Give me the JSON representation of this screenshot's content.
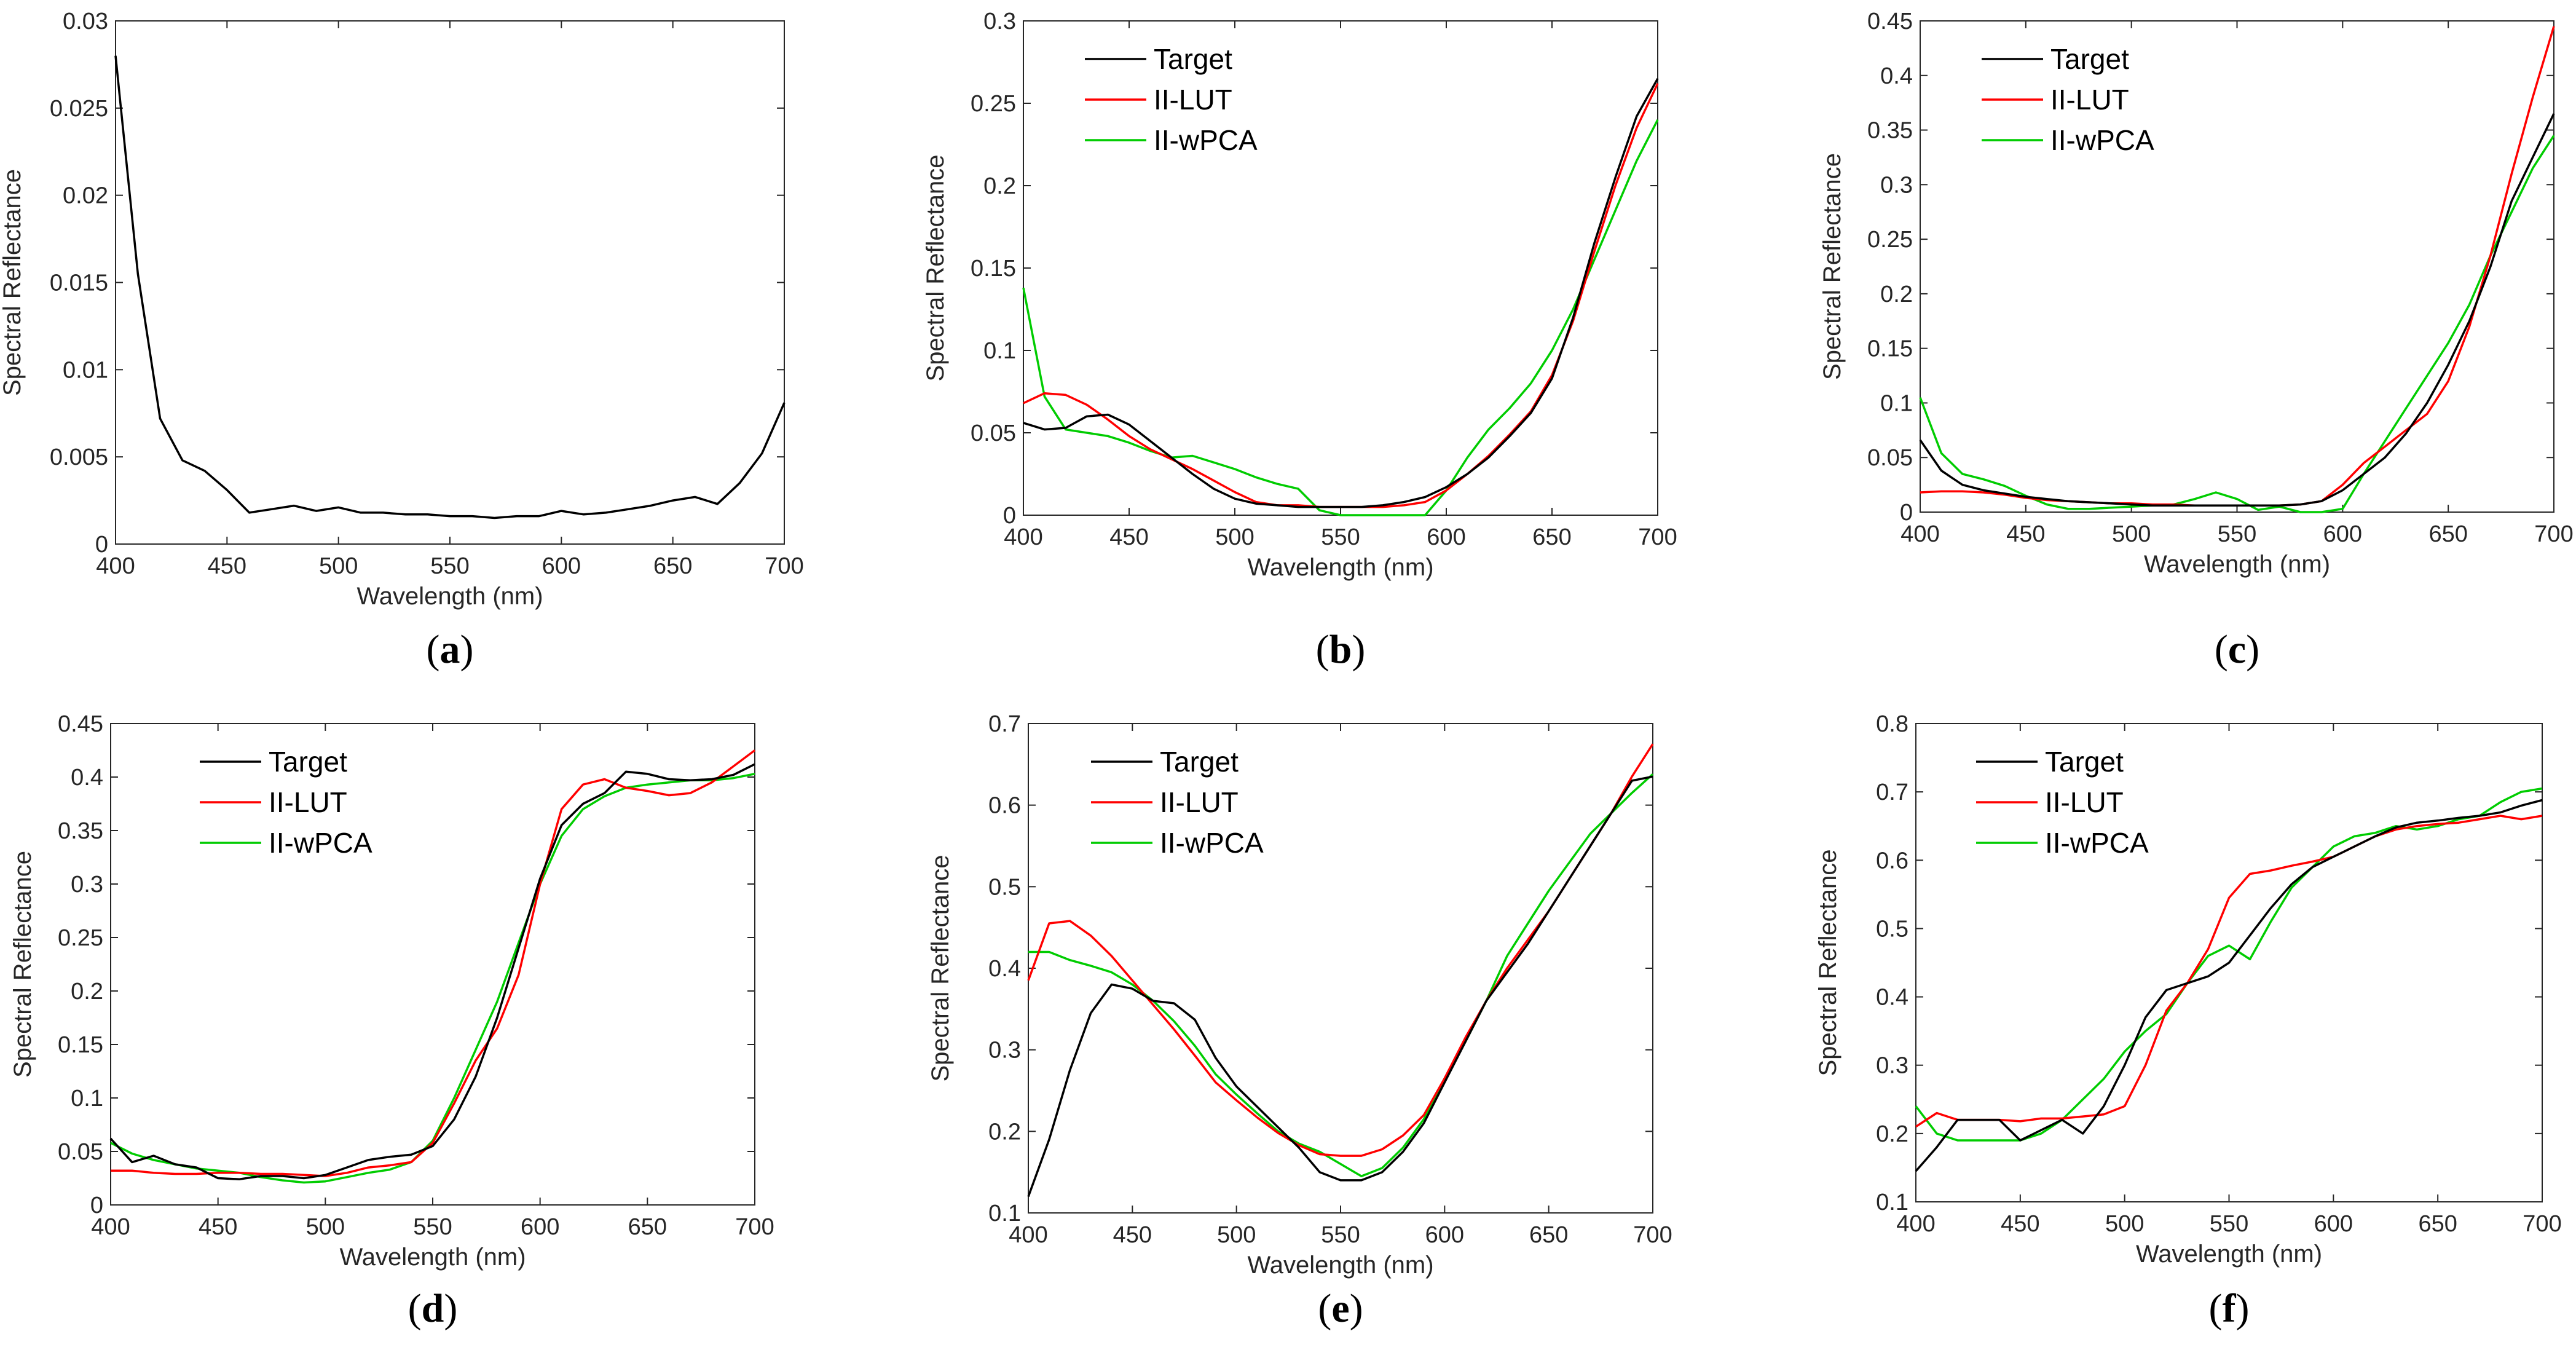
{
  "figure_description_text": null,
  "colors": {
    "Target": "#000000",
    "II-LUT": "#ff0000",
    "II-wPCA": "#00cc00",
    "axis": "#262626"
  },
  "chart_data": [
    {
      "panel": "a",
      "label_letter": "a",
      "type": "line",
      "xlabel": "Wavelength (nm)",
      "ylabel": "Spectral Reflectance",
      "xlim": [
        400,
        700
      ],
      "ylim": [
        0,
        0.03
      ],
      "xticks": [
        400,
        450,
        500,
        550,
        600,
        650,
        700
      ],
      "yticks": [
        0,
        0.005,
        0.01,
        0.015,
        0.02,
        0.025,
        0.03
      ],
      "ytick_labels": [
        "0",
        "0.005",
        "0.01",
        "0.015",
        "0.02",
        "0.025",
        "0.03"
      ],
      "legend": null,
      "x": [
        400,
        410,
        420,
        430,
        440,
        450,
        460,
        470,
        480,
        490,
        500,
        510,
        520,
        530,
        540,
        550,
        560,
        570,
        580,
        590,
        600,
        610,
        620,
        630,
        640,
        650,
        660,
        670,
        680,
        690,
        700
      ],
      "series": [
        {
          "name": "Target",
          "values": [
            0.028,
            0.0155,
            0.0072,
            0.0048,
            0.0042,
            0.0031,
            0.0018,
            0.002,
            0.0022,
            0.0019,
            0.0021,
            0.0018,
            0.0018,
            0.0017,
            0.0017,
            0.0016,
            0.0016,
            0.0015,
            0.0016,
            0.0016,
            0.0019,
            0.0017,
            0.0018,
            0.002,
            0.0022,
            0.0025,
            0.0027,
            0.0023,
            0.0035,
            0.0052,
            0.0081
          ]
        }
      ]
    },
    {
      "panel": "b",
      "label_letter": "b",
      "type": "line",
      "xlabel": "Wavelength (nm)",
      "ylabel": "Spectral Reflectance",
      "xlim": [
        400,
        700
      ],
      "ylim": [
        0,
        0.3
      ],
      "xticks": [
        400,
        450,
        500,
        550,
        600,
        650,
        700
      ],
      "yticks": [
        0,
        0.05,
        0.1,
        0.15,
        0.2,
        0.25,
        0.3
      ],
      "ytick_labels": [
        "0",
        "0.05",
        "0.1",
        "0.15",
        "0.2",
        "0.25",
        "0.3"
      ],
      "legend": [
        "Target",
        "II-LUT",
        "II-wPCA"
      ],
      "x": [
        400,
        410,
        420,
        430,
        440,
        450,
        460,
        470,
        480,
        490,
        500,
        510,
        520,
        530,
        540,
        550,
        560,
        570,
        580,
        590,
        600,
        610,
        620,
        630,
        640,
        650,
        660,
        670,
        680,
        690,
        700
      ],
      "series": [
        {
          "name": "Target",
          "values": [
            0.056,
            0.052,
            0.053,
            0.06,
            0.061,
            0.055,
            0.045,
            0.035,
            0.025,
            0.016,
            0.01,
            0.007,
            0.006,
            0.005,
            0.005,
            0.005,
            0.005,
            0.006,
            0.008,
            0.011,
            0.017,
            0.025,
            0.035,
            0.048,
            0.062,
            0.083,
            0.12,
            0.165,
            0.205,
            0.242,
            0.265
          ]
        },
        {
          "name": "II-LUT",
          "values": [
            0.068,
            0.074,
            0.073,
            0.067,
            0.058,
            0.048,
            0.04,
            0.034,
            0.028,
            0.021,
            0.014,
            0.008,
            0.006,
            0.006,
            0.005,
            0.005,
            0.005,
            0.005,
            0.006,
            0.008,
            0.015,
            0.025,
            0.036,
            0.049,
            0.063,
            0.085,
            0.118,
            0.16,
            0.2,
            0.235,
            0.262
          ]
        },
        {
          "name": "II-wPCA",
          "values": [
            0.138,
            0.072,
            0.052,
            0.05,
            0.048,
            0.044,
            0.039,
            0.035,
            0.036,
            0.032,
            0.028,
            0.023,
            0.019,
            0.016,
            0.003,
            0.0,
            0.0,
            0.0,
            0.0,
            0.0,
            0.015,
            0.035,
            0.052,
            0.065,
            0.08,
            0.1,
            0.125,
            0.155,
            0.185,
            0.215,
            0.24
          ]
        }
      ]
    },
    {
      "panel": "c",
      "label_letter": "c",
      "type": "line",
      "xlabel": "Wavelength (nm)",
      "ylabel": "Spectral Reflectance",
      "xlim": [
        400,
        700
      ],
      "ylim": [
        0,
        0.45
      ],
      "xticks": [
        400,
        450,
        500,
        550,
        600,
        650,
        700
      ],
      "yticks": [
        0,
        0.05,
        0.1,
        0.15,
        0.2,
        0.25,
        0.3,
        0.35,
        0.4,
        0.45
      ],
      "ytick_labels": [
        "0",
        "0.05",
        "0.1",
        "0.15",
        "0.2",
        "0.25",
        "0.3",
        "0.35",
        "0.4",
        "0.45"
      ],
      "legend": [
        "Target",
        "II-LUT",
        "II-wPCA"
      ],
      "x": [
        400,
        410,
        420,
        430,
        440,
        450,
        460,
        470,
        480,
        490,
        500,
        510,
        520,
        530,
        540,
        550,
        560,
        570,
        580,
        590,
        600,
        610,
        620,
        630,
        640,
        650,
        660,
        670,
        680,
        690,
        700
      ],
      "series": [
        {
          "name": "Target",
          "values": [
            0.066,
            0.038,
            0.025,
            0.02,
            0.017,
            0.014,
            0.012,
            0.01,
            0.009,
            0.008,
            0.007,
            0.006,
            0.006,
            0.006,
            0.006,
            0.006,
            0.006,
            0.006,
            0.007,
            0.01,
            0.02,
            0.035,
            0.05,
            0.072,
            0.1,
            0.135,
            0.175,
            0.225,
            0.285,
            0.325,
            0.365
          ]
        },
        {
          "name": "II-LUT",
          "values": [
            0.018,
            0.019,
            0.019,
            0.018,
            0.016,
            0.013,
            0.011,
            0.01,
            0.009,
            0.008,
            0.008,
            0.007,
            0.007,
            0.006,
            0.006,
            0.006,
            0.006,
            0.006,
            0.007,
            0.01,
            0.025,
            0.045,
            0.06,
            0.075,
            0.09,
            0.12,
            0.17,
            0.235,
            0.31,
            0.38,
            0.445
          ]
        },
        {
          "name": "II-wPCA",
          "values": [
            0.105,
            0.054,
            0.035,
            0.03,
            0.024,
            0.015,
            0.007,
            0.003,
            0.003,
            0.004,
            0.005,
            0.006,
            0.007,
            0.012,
            0.018,
            0.012,
            0.002,
            0.005,
            0.0,
            0.0,
            0.003,
            0.035,
            0.065,
            0.095,
            0.125,
            0.155,
            0.19,
            0.235,
            0.275,
            0.315,
            0.345
          ]
        }
      ]
    },
    {
      "panel": "d",
      "label_letter": "d",
      "type": "line",
      "xlabel": "Wavelength (nm)",
      "ylabel": "Spectral Reflectance",
      "xlim": [
        400,
        700
      ],
      "ylim": [
        0,
        0.45
      ],
      "xticks": [
        400,
        450,
        500,
        550,
        600,
        650,
        700
      ],
      "yticks": [
        0,
        0.05,
        0.1,
        0.15,
        0.2,
        0.25,
        0.3,
        0.35,
        0.4,
        0.45
      ],
      "ytick_labels": [
        "0",
        "0.05",
        "0.1",
        "0.15",
        "0.2",
        "0.25",
        "0.3",
        "0.35",
        "0.4",
        "0.45"
      ],
      "legend": [
        "Target",
        "II-LUT",
        "II-wPCA"
      ],
      "x": [
        400,
        410,
        420,
        430,
        440,
        450,
        460,
        470,
        480,
        490,
        500,
        510,
        520,
        530,
        540,
        550,
        560,
        570,
        580,
        590,
        600,
        610,
        620,
        630,
        640,
        650,
        660,
        670,
        680,
        690,
        700
      ],
      "series": [
        {
          "name": "Target",
          "values": [
            0.062,
            0.04,
            0.046,
            0.038,
            0.035,
            0.025,
            0.024,
            0.027,
            0.027,
            0.025,
            0.028,
            0.035,
            0.042,
            0.045,
            0.047,
            0.055,
            0.08,
            0.12,
            0.175,
            0.24,
            0.305,
            0.355,
            0.375,
            0.385,
            0.405,
            0.403,
            0.398,
            0.397,
            0.398,
            0.402,
            0.412
          ]
        },
        {
          "name": "II-LUT",
          "values": [
            0.032,
            0.032,
            0.03,
            0.029,
            0.029,
            0.03,
            0.03,
            0.029,
            0.029,
            0.028,
            0.027,
            0.03,
            0.035,
            0.037,
            0.04,
            0.058,
            0.095,
            0.135,
            0.165,
            0.215,
            0.3,
            0.37,
            0.393,
            0.398,
            0.39,
            0.387,
            0.383,
            0.385,
            0.395,
            0.41,
            0.425
          ]
        },
        {
          "name": "II-wPCA",
          "values": [
            0.058,
            0.048,
            0.042,
            0.038,
            0.034,
            0.032,
            0.03,
            0.026,
            0.023,
            0.021,
            0.022,
            0.026,
            0.03,
            0.033,
            0.04,
            0.06,
            0.1,
            0.145,
            0.19,
            0.245,
            0.3,
            0.345,
            0.37,
            0.382,
            0.39,
            0.393,
            0.395,
            0.397,
            0.397,
            0.399,
            0.403
          ]
        }
      ]
    },
    {
      "panel": "e",
      "label_letter": "e",
      "type": "line",
      "xlabel": "Wavelength (nm)",
      "ylabel": "Spectral Reflectance",
      "xlim": [
        400,
        700
      ],
      "ylim": [
        0.1,
        0.7
      ],
      "xticks": [
        400,
        450,
        500,
        550,
        600,
        650,
        700
      ],
      "yticks": [
        0.1,
        0.2,
        0.3,
        0.4,
        0.5,
        0.6,
        0.7
      ],
      "ytick_labels": [
        "0.1",
        "0.2",
        "0.3",
        "0.4",
        "0.5",
        "0.6",
        "0.7"
      ],
      "legend": [
        "Target",
        "II-LUT",
        "II-wPCA"
      ],
      "x": [
        400,
        410,
        420,
        430,
        440,
        450,
        460,
        470,
        480,
        490,
        500,
        510,
        520,
        530,
        540,
        550,
        560,
        570,
        580,
        590,
        600,
        610,
        620,
        630,
        640,
        650,
        660,
        670,
        680,
        690,
        700
      ],
      "series": [
        {
          "name": "Target",
          "values": [
            0.12,
            0.19,
            0.275,
            0.345,
            0.38,
            0.375,
            0.36,
            0.357,
            0.337,
            0.29,
            0.255,
            0.23,
            0.205,
            0.18,
            0.15,
            0.14,
            0.14,
            0.15,
            0.175,
            0.21,
            0.26,
            0.31,
            0.36,
            0.395,
            0.43,
            0.47,
            0.51,
            0.55,
            0.59,
            0.63,
            0.635
          ]
        },
        {
          "name": "II-LUT",
          "values": [
            0.385,
            0.455,
            0.458,
            0.44,
            0.415,
            0.385,
            0.355,
            0.325,
            0.293,
            0.26,
            0.238,
            0.217,
            0.198,
            0.183,
            0.172,
            0.17,
            0.17,
            0.178,
            0.195,
            0.22,
            0.265,
            0.315,
            0.36,
            0.4,
            0.435,
            0.47,
            0.51,
            0.55,
            0.59,
            0.635,
            0.675
          ]
        },
        {
          "name": "II-wPCA",
          "values": [
            0.42,
            0.42,
            0.41,
            0.403,
            0.395,
            0.38,
            0.36,
            0.335,
            0.305,
            0.27,
            0.245,
            0.222,
            0.2,
            0.185,
            0.175,
            0.16,
            0.145,
            0.155,
            0.18,
            0.215,
            0.265,
            0.31,
            0.36,
            0.415,
            0.455,
            0.495,
            0.53,
            0.565,
            0.59,
            0.615,
            0.638
          ]
        }
      ]
    },
    {
      "panel": "f",
      "label_letter": "f",
      "type": "line",
      "xlabel": "Wavelength (nm)",
      "ylabel": "Spectral Reflectance",
      "xlim": [
        400,
        700
      ],
      "ylim": [
        0.1,
        0.8
      ],
      "xticks": [
        400,
        450,
        500,
        550,
        600,
        650,
        700
      ],
      "yticks": [
        0.1,
        0.2,
        0.3,
        0.4,
        0.5,
        0.6,
        0.7,
        0.8
      ],
      "ytick_labels": [
        "0.1",
        "0.2",
        "0.3",
        "0.4",
        "0.5",
        "0.6",
        "0.7",
        "0.8"
      ],
      "legend": [
        "Target",
        "II-LUT",
        "II-wPCA"
      ],
      "x": [
        400,
        410,
        420,
        430,
        440,
        450,
        460,
        470,
        480,
        490,
        500,
        510,
        520,
        530,
        540,
        550,
        560,
        570,
        580,
        590,
        600,
        610,
        620,
        630,
        640,
        650,
        660,
        670,
        680,
        690,
        700
      ],
      "series": [
        {
          "name": "Target",
          "values": [
            0.145,
            0.18,
            0.22,
            0.22,
            0.22,
            0.19,
            0.205,
            0.22,
            0.2,
            0.24,
            0.3,
            0.37,
            0.41,
            0.42,
            0.43,
            0.45,
            0.49,
            0.53,
            0.565,
            0.59,
            0.605,
            0.62,
            0.635,
            0.648,
            0.655,
            0.658,
            0.662,
            0.665,
            0.67,
            0.68,
            0.688
          ]
        },
        {
          "name": "II-LUT",
          "values": [
            0.21,
            0.23,
            0.22,
            0.22,
            0.22,
            0.218,
            0.222,
            0.222,
            0.225,
            0.228,
            0.24,
            0.3,
            0.38,
            0.42,
            0.47,
            0.545,
            0.58,
            0.585,
            0.592,
            0.598,
            0.605,
            0.62,
            0.635,
            0.645,
            0.65,
            0.653,
            0.655,
            0.66,
            0.665,
            0.66,
            0.665
          ]
        },
        {
          "name": "II-wPCA",
          "values": [
            0.24,
            0.2,
            0.19,
            0.19,
            0.19,
            0.19,
            0.2,
            0.22,
            0.25,
            0.28,
            0.32,
            0.35,
            0.375,
            0.42,
            0.46,
            0.475,
            0.455,
            0.51,
            0.56,
            0.59,
            0.62,
            0.635,
            0.64,
            0.65,
            0.645,
            0.65,
            0.66,
            0.665,
            0.685,
            0.7,
            0.705
          ]
        }
      ]
    }
  ]
}
